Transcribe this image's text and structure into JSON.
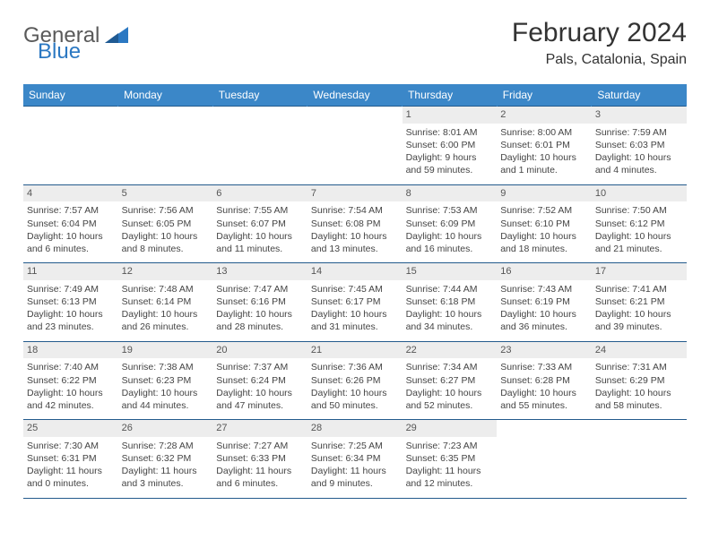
{
  "brand": {
    "part1": "General",
    "part2": "Blue"
  },
  "title": "February 2024",
  "subtitle": "Pals, Catalonia, Spain",
  "colors": {
    "header_bg": "#3b87c8",
    "header_text": "#ffffff",
    "rule": "#235a8c",
    "daynum_bg": "#ededed",
    "logo_blue": "#2b78c2",
    "logo_gray": "#5a5a5a"
  },
  "weekdays": [
    "Sunday",
    "Monday",
    "Tuesday",
    "Wednesday",
    "Thursday",
    "Friday",
    "Saturday"
  ],
  "grid": [
    [
      null,
      null,
      null,
      null,
      {
        "n": "1",
        "sr": "8:01 AM",
        "ss": "6:00 PM",
        "dl": "9 hours and 59 minutes."
      },
      {
        "n": "2",
        "sr": "8:00 AM",
        "ss": "6:01 PM",
        "dl": "10 hours and 1 minute."
      },
      {
        "n": "3",
        "sr": "7:59 AM",
        "ss": "6:03 PM",
        "dl": "10 hours and 4 minutes."
      }
    ],
    [
      {
        "n": "4",
        "sr": "7:57 AM",
        "ss": "6:04 PM",
        "dl": "10 hours and 6 minutes."
      },
      {
        "n": "5",
        "sr": "7:56 AM",
        "ss": "6:05 PM",
        "dl": "10 hours and 8 minutes."
      },
      {
        "n": "6",
        "sr": "7:55 AM",
        "ss": "6:07 PM",
        "dl": "10 hours and 11 minutes."
      },
      {
        "n": "7",
        "sr": "7:54 AM",
        "ss": "6:08 PM",
        "dl": "10 hours and 13 minutes."
      },
      {
        "n": "8",
        "sr": "7:53 AM",
        "ss": "6:09 PM",
        "dl": "10 hours and 16 minutes."
      },
      {
        "n": "9",
        "sr": "7:52 AM",
        "ss": "6:10 PM",
        "dl": "10 hours and 18 minutes."
      },
      {
        "n": "10",
        "sr": "7:50 AM",
        "ss": "6:12 PM",
        "dl": "10 hours and 21 minutes."
      }
    ],
    [
      {
        "n": "11",
        "sr": "7:49 AM",
        "ss": "6:13 PM",
        "dl": "10 hours and 23 minutes."
      },
      {
        "n": "12",
        "sr": "7:48 AM",
        "ss": "6:14 PM",
        "dl": "10 hours and 26 minutes."
      },
      {
        "n": "13",
        "sr": "7:47 AM",
        "ss": "6:16 PM",
        "dl": "10 hours and 28 minutes."
      },
      {
        "n": "14",
        "sr": "7:45 AM",
        "ss": "6:17 PM",
        "dl": "10 hours and 31 minutes."
      },
      {
        "n": "15",
        "sr": "7:44 AM",
        "ss": "6:18 PM",
        "dl": "10 hours and 34 minutes."
      },
      {
        "n": "16",
        "sr": "7:43 AM",
        "ss": "6:19 PM",
        "dl": "10 hours and 36 minutes."
      },
      {
        "n": "17",
        "sr": "7:41 AM",
        "ss": "6:21 PM",
        "dl": "10 hours and 39 minutes."
      }
    ],
    [
      {
        "n": "18",
        "sr": "7:40 AM",
        "ss": "6:22 PM",
        "dl": "10 hours and 42 minutes."
      },
      {
        "n": "19",
        "sr": "7:38 AM",
        "ss": "6:23 PM",
        "dl": "10 hours and 44 minutes."
      },
      {
        "n": "20",
        "sr": "7:37 AM",
        "ss": "6:24 PM",
        "dl": "10 hours and 47 minutes."
      },
      {
        "n": "21",
        "sr": "7:36 AM",
        "ss": "6:26 PM",
        "dl": "10 hours and 50 minutes."
      },
      {
        "n": "22",
        "sr": "7:34 AM",
        "ss": "6:27 PM",
        "dl": "10 hours and 52 minutes."
      },
      {
        "n": "23",
        "sr": "7:33 AM",
        "ss": "6:28 PM",
        "dl": "10 hours and 55 minutes."
      },
      {
        "n": "24",
        "sr": "7:31 AM",
        "ss": "6:29 PM",
        "dl": "10 hours and 58 minutes."
      }
    ],
    [
      {
        "n": "25",
        "sr": "7:30 AM",
        "ss": "6:31 PM",
        "dl": "11 hours and 0 minutes."
      },
      {
        "n": "26",
        "sr": "7:28 AM",
        "ss": "6:32 PM",
        "dl": "11 hours and 3 minutes."
      },
      {
        "n": "27",
        "sr": "7:27 AM",
        "ss": "6:33 PM",
        "dl": "11 hours and 6 minutes."
      },
      {
        "n": "28",
        "sr": "7:25 AM",
        "ss": "6:34 PM",
        "dl": "11 hours and 9 minutes."
      },
      {
        "n": "29",
        "sr": "7:23 AM",
        "ss": "6:35 PM",
        "dl": "11 hours and 12 minutes."
      },
      null,
      null
    ]
  ],
  "labels": {
    "sunrise": "Sunrise: ",
    "sunset": "Sunset: ",
    "daylight": "Daylight: "
  }
}
